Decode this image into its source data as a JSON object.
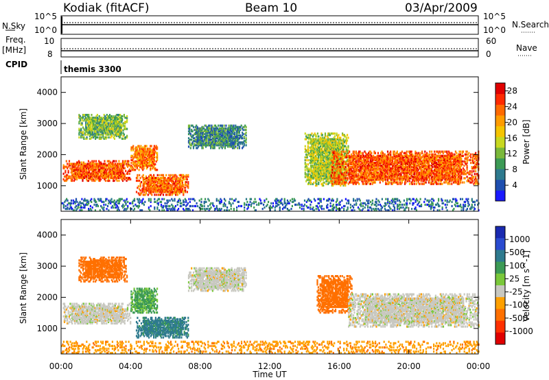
{
  "header": {
    "station": "Kodiak (fitACF)",
    "beam": "Beam 10",
    "date": "03/Apr/2009"
  },
  "meta": {
    "left_top": "N.Sky",
    "right_top": "N.Search",
    "left_freq": "Freq.",
    "left_freq_unit": "[MHz]",
    "right_mid": "Nave",
    "cpid_label": "CPID",
    "cpid_value": "themis 3300",
    "nsky_ticks": [
      "10^5",
      "10^0"
    ],
    "nsearch_ticks": [
      "10^5",
      "10^0"
    ],
    "freq_ticks": [
      "10",
      "8"
    ],
    "nave_ticks": [
      "60",
      "0"
    ]
  },
  "chart_data": [
    {
      "type": "heatmap",
      "title": "",
      "xlabel": "Time UT",
      "ylabel": "Slant Range [km]",
      "xlim": [
        "00:00",
        "24:00"
      ],
      "ylim": [
        180,
        4500
      ],
      "x_ticks": [
        "00:00",
        "04:00",
        "08:00",
        "12:00",
        "16:00",
        "20:00",
        "00:00"
      ],
      "y_ticks": [
        1000,
        2000,
        3000,
        4000
      ],
      "colorbar": {
        "label": "Power [dB]",
        "ticks": [
          4,
          8,
          12,
          16,
          20,
          24,
          28
        ],
        "range": [
          0,
          30
        ],
        "colors": [
          "#1a1aff",
          "#1f4fb0",
          "#2e7a8e",
          "#3c9a55",
          "#7ab83a",
          "#c8d820",
          "#f5c400",
          "#ff9c00",
          "#ff6a00",
          "#ff2a00",
          "#e00000"
        ]
      },
      "regions": [
        {
          "t": [
            0.1,
            4.0
          ],
          "r": [
            1150,
            1800
          ],
          "value": 24
        },
        {
          "t": [
            4.0,
            5.5
          ],
          "r": [
            1500,
            2300
          ],
          "value": 22
        },
        {
          "t": [
            4.3,
            7.3
          ],
          "r": [
            700,
            1350
          ],
          "value": 23
        },
        {
          "t": [
            1.0,
            3.8
          ],
          "r": [
            2500,
            3300
          ],
          "value": 12
        },
        {
          "t": [
            7.3,
            10.6
          ],
          "r": [
            2200,
            2950
          ],
          "value": 8
        },
        {
          "t": [
            14.0,
            16.5
          ],
          "r": [
            1000,
            2700
          ],
          "value": 14
        },
        {
          "t": [
            15.5,
            24.0
          ],
          "r": [
            1050,
            2100
          ],
          "value": 24
        },
        {
          "t": [
            0.0,
            24.0
          ],
          "r": [
            200,
            600
          ],
          "value": 6
        }
      ]
    },
    {
      "type": "heatmap",
      "title": "",
      "xlabel": "Time UT",
      "ylabel": "Slant Range [km]",
      "xlim": [
        "00:00",
        "24:00"
      ],
      "ylim": [
        180,
        4500
      ],
      "x_ticks": [
        "00:00",
        "04:00",
        "08:00",
        "12:00",
        "16:00",
        "20:00",
        "00:00"
      ],
      "y_ticks": [
        1000,
        2000,
        3000,
        4000
      ],
      "colorbar": {
        "label": "Velocity [m s^-1]",
        "tick_labels": [
          "1000",
          "500",
          "100",
          "25",
          "-25",
          "-100",
          "-500",
          "-1000"
        ],
        "colors": [
          "#1a2ab0",
          "#2a4bd0",
          "#2e7a8e",
          "#3c9a55",
          "#7ac83a",
          "#c8c8c0",
          "#ffa000",
          "#ff7000",
          "#ff3000",
          "#e00000"
        ]
      },
      "regions": [
        {
          "t": [
            0.1,
            4.0
          ],
          "r": [
            1150,
            1800
          ],
          "value": 0
        },
        {
          "t": [
            4.0,
            5.5
          ],
          "r": [
            1500,
            2300
          ],
          "value": 60
        },
        {
          "t": [
            4.3,
            7.3
          ],
          "r": [
            700,
            1350
          ],
          "value": 120
        },
        {
          "t": [
            1.0,
            3.8
          ],
          "r": [
            2500,
            3300
          ],
          "value": -150
        },
        {
          "t": [
            7.3,
            10.6
          ],
          "r": [
            2200,
            2950
          ],
          "value": 0
        },
        {
          "t": [
            14.7,
            16.7
          ],
          "r": [
            1500,
            2700
          ],
          "value": -300
        },
        {
          "t": [
            16.5,
            24.0
          ],
          "r": [
            1050,
            2100
          ],
          "value": 0
        },
        {
          "t": [
            0.0,
            24.0
          ],
          "r": [
            200,
            600
          ],
          "value": -80
        }
      ]
    }
  ]
}
